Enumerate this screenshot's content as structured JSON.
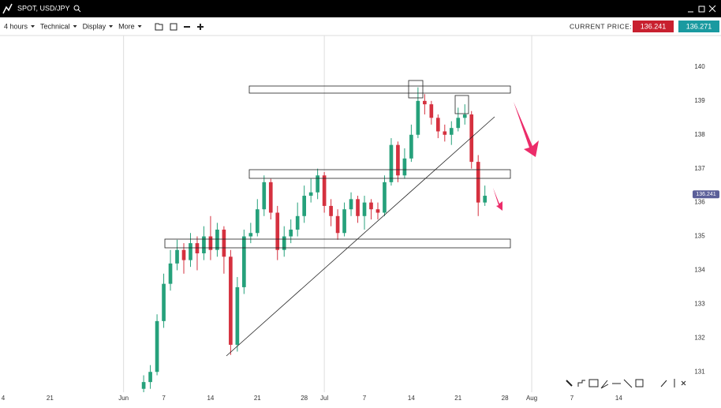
{
  "header": {
    "title": "SPOT, USD/JPY"
  },
  "toolbar": {
    "menus": [
      "4 hours",
      "Technical",
      "Display",
      "More"
    ],
    "current_price_label": "CURRENT PRICE:",
    "bid": "136.241",
    "ask": "136.271"
  },
  "chart_data": {
    "type": "candlestick",
    "x": [
      155,
      156,
      157,
      158,
      159,
      160,
      161,
      162,
      163,
      164,
      165,
      166,
      167,
      168,
      169,
      170,
      171,
      172,
      173,
      174,
      175,
      176,
      177,
      178,
      179,
      180,
      181,
      182,
      183,
      184,
      185,
      186,
      187,
      188,
      189,
      190,
      191,
      192,
      193,
      194,
      195,
      196,
      197,
      198,
      199,
      200,
      201,
      202,
      203,
      204,
      205,
      206
    ],
    "open": [
      130.5,
      130.7,
      131.0,
      132.5,
      133.6,
      134.2,
      134.6,
      134.3,
      134.8,
      134.5,
      135.0,
      134.6,
      135.2,
      134.4,
      131.8,
      133.5,
      135.0,
      135.1,
      135.8,
      136.6,
      135.7,
      134.6,
      135.0,
      135.2,
      135.6,
      136.2,
      136.3,
      136.8,
      135.9,
      135.6,
      135.1,
      135.8,
      136.1,
      135.6,
      136.0,
      135.8,
      135.7,
      136.6,
      137.7,
      136.8,
      137.3,
      138.0,
      139.0,
      138.9,
      138.5,
      138.1,
      138.0,
      138.2,
      138.5,
      138.6,
      137.2,
      136.0
    ],
    "high": [
      130.9,
      131.2,
      132.7,
      133.9,
      134.6,
      134.9,
      134.8,
      135.1,
      135.0,
      135.3,
      135.6,
      135.4,
      135.3,
      134.6,
      133.8,
      135.2,
      135.4,
      136.1,
      136.8,
      136.7,
      135.9,
      135.3,
      135.5,
      136.0,
      136.5,
      136.7,
      137.0,
      136.9,
      136.1,
      135.8,
      136.0,
      136.3,
      136.2,
      136.2,
      136.1,
      136.0,
      136.8,
      137.9,
      137.8,
      137.6,
      138.3,
      139.4,
      139.2,
      139.0,
      138.6,
      138.3,
      138.4,
      138.8,
      138.9,
      138.7,
      137.4,
      136.5
    ],
    "low": [
      130.4,
      130.5,
      130.9,
      132.3,
      133.4,
      134.0,
      133.9,
      134.1,
      134.0,
      134.3,
      134.3,
      134.4,
      133.9,
      131.5,
      131.6,
      133.3,
      134.8,
      135.0,
      135.6,
      135.5,
      134.3,
      134.4,
      134.8,
      135.0,
      135.4,
      136.0,
      136.1,
      135.7,
      135.3,
      134.9,
      135.0,
      135.6,
      135.4,
      135.2,
      135.5,
      135.5,
      135.6,
      136.5,
      136.6,
      136.7,
      137.2,
      137.9,
      138.6,
      138.3,
      137.9,
      137.8,
      137.7,
      138.1,
      138.3,
      137.0,
      135.6,
      135.9
    ],
    "close": [
      130.7,
      131.0,
      132.5,
      133.6,
      134.2,
      134.6,
      134.3,
      134.8,
      134.5,
      135.0,
      134.6,
      135.2,
      134.4,
      131.8,
      133.5,
      135.0,
      135.1,
      135.8,
      136.6,
      135.7,
      134.6,
      135.0,
      135.2,
      135.6,
      136.2,
      136.3,
      136.8,
      135.9,
      135.6,
      135.1,
      135.8,
      136.1,
      135.6,
      136.0,
      135.8,
      135.7,
      136.6,
      137.7,
      136.8,
      137.3,
      138.0,
      139.0,
      138.9,
      138.5,
      138.1,
      138.0,
      138.2,
      138.5,
      138.6,
      137.2,
      136.0,
      136.2
    ],
    "up_color": "#26a17b",
    "down_color": "#d5313f",
    "xlim": [
      133.53,
      236.1
    ],
    "xticks": [
      {
        "value": 134,
        "label": "4"
      },
      {
        "value": 141,
        "label": "21"
      },
      {
        "value": 152,
        "label": "Jun"
      },
      {
        "value": 158,
        "label": "7"
      },
      {
        "value": 165,
        "label": "14"
      },
      {
        "value": 172,
        "label": "21"
      },
      {
        "value": 179,
        "label": "28"
      },
      {
        "value": 182,
        "label": "Jul"
      },
      {
        "value": 188,
        "label": "7"
      },
      {
        "value": 195,
        "label": "14"
      },
      {
        "value": 202,
        "label": "21"
      },
      {
        "value": 209,
        "label": "28"
      },
      {
        "value": 213,
        "label": "Aug"
      },
      {
        "value": 219,
        "label": "7"
      },
      {
        "value": 226,
        "label": "14"
      }
    ],
    "ylim": [
      130.4,
      140.93
    ],
    "yticks": [
      131,
      132,
      133,
      134,
      135,
      136,
      137,
      138,
      139,
      140
    ],
    "last_price": 136.241
  }
}
